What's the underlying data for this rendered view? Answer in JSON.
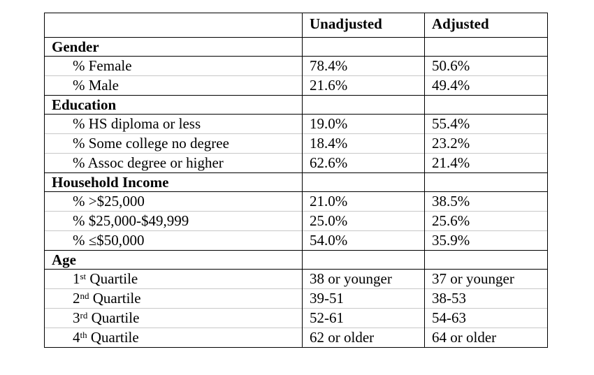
{
  "header": {
    "col1": "",
    "col2": "Unadjusted",
    "col3": "Adjusted"
  },
  "sections": [
    {
      "title": "Gender",
      "rows": [
        {
          "label": "% Female",
          "unadjusted": "78.4%",
          "adjusted": "50.6%"
        },
        {
          "label": "% Male",
          "unadjusted": "21.6%",
          "adjusted": "49.4%"
        }
      ]
    },
    {
      "title": "Education",
      "rows": [
        {
          "label": "% HS diploma or less",
          "unadjusted": "19.0%",
          "adjusted": "55.4%"
        },
        {
          "label": "% Some college no degree",
          "unadjusted": "18.4%",
          "adjusted": "23.2%"
        },
        {
          "label": "% Assoc degree or higher",
          "unadjusted": "62.6%",
          "adjusted": "21.4%"
        }
      ]
    },
    {
      "title": "Household Income",
      "rows": [
        {
          "label": "% >$25,000",
          "unadjusted": "21.0%",
          "adjusted": "38.5%"
        },
        {
          "label": "% $25,000-$49,999",
          "unadjusted": "25.0%",
          "adjusted": "25.6%"
        },
        {
          "label": "% ≤$50,000",
          "unadjusted": "54.0%",
          "adjusted": "35.9%"
        }
      ]
    },
    {
      "title": "Age",
      "rows": [
        {
          "num": "1",
          "sup": "st",
          "word": "Quartile",
          "unadjusted": "38 or younger",
          "adjusted": "37 or younger"
        },
        {
          "num": "2",
          "sup": "nd",
          "word": "Quartile",
          "unadjusted": "39-51",
          "adjusted": "38-53"
        },
        {
          "num": "3",
          "sup": "rd",
          "word": "Quartile",
          "unadjusted": "52-61",
          "adjusted": "54-63"
        },
        {
          "num": "4",
          "sup": "th",
          "word": "Quartile",
          "unadjusted": "62 or older",
          "adjusted": "64 or older"
        }
      ]
    }
  ]
}
